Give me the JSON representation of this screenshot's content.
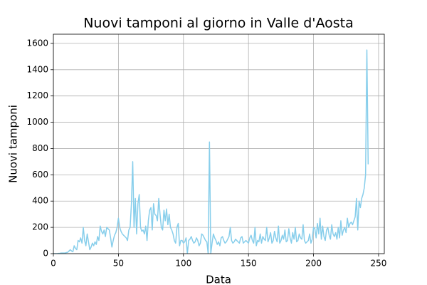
{
  "chart_data": {
    "type": "line",
    "title": "Nuovi tamponi al giorno in Valle d'Aosta",
    "xlabel": "Data",
    "ylabel": "Nuovi tamponi",
    "x": [
      0,
      1,
      2,
      3,
      4,
      5,
      6,
      7,
      8,
      9,
      10,
      11,
      12,
      13,
      14,
      15,
      16,
      17,
      18,
      19,
      20,
      21,
      22,
      23,
      24,
      25,
      26,
      27,
      28,
      29,
      30,
      31,
      32,
      33,
      34,
      35,
      36,
      37,
      38,
      39,
      40,
      41,
      42,
      43,
      44,
      45,
      46,
      47,
      48,
      49,
      50,
      51,
      52,
      53,
      54,
      55,
      56,
      57,
      58,
      59,
      60,
      61,
      62,
      63,
      64,
      65,
      66,
      67,
      68,
      69,
      70,
      71,
      72,
      73,
      74,
      75,
      76,
      77,
      78,
      79,
      80,
      81,
      82,
      83,
      84,
      85,
      86,
      87,
      88,
      89,
      90,
      91,
      92,
      93,
      94,
      95,
      96,
      97,
      98,
      99,
      100,
      101,
      102,
      103,
      104,
      105,
      106,
      107,
      108,
      109,
      110,
      111,
      112,
      113,
      114,
      115,
      116,
      117,
      118,
      119,
      120,
      121,
      122,
      123,
      124,
      125,
      126,
      127,
      128,
      129,
      130,
      131,
      132,
      133,
      134,
      135,
      136,
      137,
      138,
      139,
      140,
      141,
      142,
      143,
      144,
      145,
      146,
      147,
      148,
      149,
      150,
      151,
      152,
      153,
      154,
      155,
      156,
      157,
      158,
      159,
      160,
      161,
      162,
      163,
      164,
      165,
      166,
      167,
      168,
      169,
      170,
      171,
      172,
      173,
      174,
      175,
      176,
      177,
      178,
      179,
      180,
      181,
      182,
      183,
      184,
      185,
      186,
      187,
      188,
      189,
      190,
      191,
      192,
      193,
      194,
      195,
      196,
      197,
      198,
      199,
      200,
      201,
      202,
      203,
      204,
      205,
      206,
      207,
      208,
      209,
      210,
      211,
      212,
      213,
      214,
      215,
      216,
      217,
      218,
      219,
      220,
      221,
      222,
      223,
      224,
      225,
      226,
      227,
      228,
      229,
      230,
      231,
      232,
      233,
      234,
      235,
      236,
      237,
      238,
      239,
      240,
      241,
      242
    ],
    "series": [
      {
        "name": "Nuovi tamponi",
        "color": "#87ceeb",
        "values": [
          0,
          0,
          0,
          0,
          2,
          3,
          5,
          5,
          5,
          5,
          8,
          10,
          20,
          30,
          20,
          15,
          60,
          40,
          30,
          100,
          90,
          120,
          80,
          200,
          100,
          60,
          150,
          90,
          30,
          50,
          80,
          60,
          90,
          70,
          130,
          100,
          210,
          170,
          150,
          180,
          130,
          200,
          190,
          180,
          120,
          50,
          100,
          140,
          160,
          200,
          270,
          200,
          170,
          150,
          140,
          130,
          120,
          100,
          180,
          200,
          380,
          700,
          200,
          420,
          150,
          380,
          450,
          200,
          170,
          180,
          150,
          210,
          100,
          250,
          330,
          350,
          180,
          380,
          300,
          290,
          250,
          420,
          300,
          200,
          180,
          330,
          250,
          340,
          220,
          300,
          200,
          180,
          150,
          100,
          80,
          200,
          230,
          60,
          100,
          100,
          80,
          90,
          120,
          0,
          100,
          110,
          130,
          100,
          80,
          90,
          120,
          100,
          60,
          80,
          150,
          140,
          120,
          100,
          90,
          0,
          850,
          0,
          80,
          150,
          120,
          100,
          70,
          90,
          60,
          120,
          130,
          100,
          80,
          90,
          110,
          130,
          200,
          100,
          80,
          90,
          110,
          100,
          90,
          80,
          120,
          130,
          80,
          90,
          100,
          90,
          80,
          120,
          140,
          100,
          80,
          200,
          60,
          100,
          90,
          150,
          80,
          130,
          110,
          100,
          200,
          90,
          120,
          160,
          80,
          100,
          170,
          120,
          90,
          210,
          80,
          100,
          140,
          110,
          180,
          90,
          100,
          190,
          120,
          80,
          160,
          110,
          200,
          90,
          100,
          150,
          120,
          110,
          220,
          100,
          80,
          90,
          100,
          150,
          80,
          110,
          200,
          190,
          120,
          230,
          150,
          270,
          110,
          210,
          130,
          100,
          180,
          200,
          140,
          110,
          220,
          150,
          130,
          160,
          110,
          200,
          120,
          250,
          140,
          180,
          200,
          160,
          270,
          200,
          230,
          240,
          220,
          250,
          280,
          420,
          180,
          400,
          350,
          420,
          450,
          500,
          600,
          1550,
          680
        ]
      }
    ],
    "xlim": [
      0,
      254.4
    ],
    "ylim": [
      0,
      1670
    ],
    "xticks": [
      0,
      50,
      100,
      150,
      200,
      250
    ],
    "yticks": [
      0,
      200,
      400,
      600,
      800,
      1000,
      1200,
      1400,
      1600
    ],
    "grid": true
  }
}
